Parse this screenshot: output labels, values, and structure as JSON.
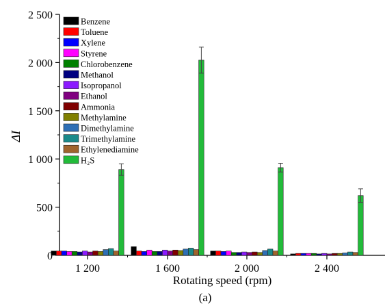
{
  "chart_data": {
    "type": "bar",
    "xlabel": "Rotating speed (rpm)",
    "ylabel": "ΔI",
    "caption": "(a)",
    "categories": [
      "1 200",
      "1 600",
      "2 000",
      "2 400"
    ],
    "ylim": [
      0,
      2500
    ],
    "yticks": [
      {
        "value": 0,
        "label": "0"
      },
      {
        "value": 500,
        "label": "500"
      },
      {
        "value": 1000,
        "label": "1 000"
      },
      {
        "value": 1500,
        "label": "1 500"
      },
      {
        "value": 2000,
        "label": "2 000"
      },
      {
        "value": 2500,
        "label": "2 500"
      }
    ],
    "grid": false,
    "legend_position": "top-left",
    "series": [
      {
        "name": "Benzene",
        "color": "#000000",
        "values": [
          45,
          90,
          45,
          15
        ]
      },
      {
        "name": "Toluene",
        "color": "#ff0000",
        "values": [
          45,
          45,
          45,
          20
        ]
      },
      {
        "name": "Xylene",
        "color": "#0000ff",
        "values": [
          45,
          40,
          40,
          20
        ]
      },
      {
        "name": "Styrene",
        "color": "#ff00ff",
        "values": [
          40,
          55,
          45,
          20
        ]
      },
      {
        "name": "Chlorobenzene",
        "color": "#008000",
        "values": [
          40,
          40,
          30,
          20
        ]
      },
      {
        "name": "Methanol",
        "color": "#000080",
        "values": [
          35,
          40,
          30,
          15
        ]
      },
      {
        "name": "Isopropanol",
        "color": "#8b1aff",
        "values": [
          45,
          55,
          35,
          20
        ]
      },
      {
        "name": "Ethanol",
        "color": "#800080",
        "values": [
          35,
          45,
          30,
          15
        ]
      },
      {
        "name": "Ammonia",
        "color": "#800000",
        "values": [
          45,
          55,
          35,
          20
        ]
      },
      {
        "name": "Methylamine",
        "color": "#808000",
        "values": [
          40,
          50,
          30,
          20
        ]
      },
      {
        "name": "Dimethylamine",
        "color": "#2e6fb5",
        "values": [
          60,
          65,
          50,
          25
        ]
      },
      {
        "name": "Trimethylamine",
        "color": "#1a8a8a",
        "values": [
          70,
          75,
          65,
          35
        ]
      },
      {
        "name": "Ethylenediamine",
        "color": "#a0642d",
        "values": [
          45,
          60,
          45,
          30
        ]
      },
      {
        "name": "H₂S",
        "color": "#22bb3a",
        "values": [
          890,
          2025,
          910,
          620
        ],
        "errors": [
          60,
          135,
          45,
          70
        ]
      }
    ]
  }
}
